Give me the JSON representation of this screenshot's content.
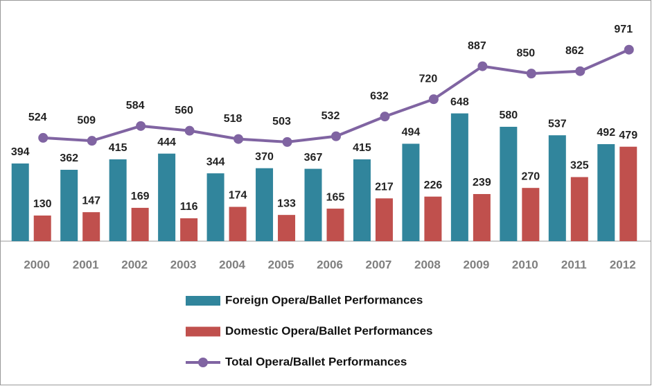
{
  "chart_data": {
    "type": "bar",
    "categories": [
      "2000",
      "2001",
      "2002",
      "2003",
      "2004",
      "2005",
      "2006",
      "2007",
      "2008",
      "2009",
      "2010",
      "2011",
      "2012"
    ],
    "series": [
      {
        "name": "Foreign Opera/Ballet Performances",
        "color": "#31859c",
        "values": [
          394,
          362,
          415,
          444,
          344,
          370,
          367,
          415,
          494,
          648,
          580,
          537,
          492
        ]
      },
      {
        "name": "Domestic Opera/Ballet Performances",
        "color": "#c0504d",
        "values": [
          130,
          147,
          169,
          116,
          174,
          133,
          165,
          217,
          226,
          239,
          270,
          325,
          479
        ]
      },
      {
        "name": "Total Opera/Ballet Performances",
        "type": "line",
        "color": "#8064a2",
        "values": [
          524,
          509,
          584,
          560,
          518,
          503,
          532,
          632,
          720,
          887,
          850,
          862,
          971
        ]
      }
    ],
    "ylim": [
      0,
      1100
    ],
    "legend": "bottom"
  }
}
